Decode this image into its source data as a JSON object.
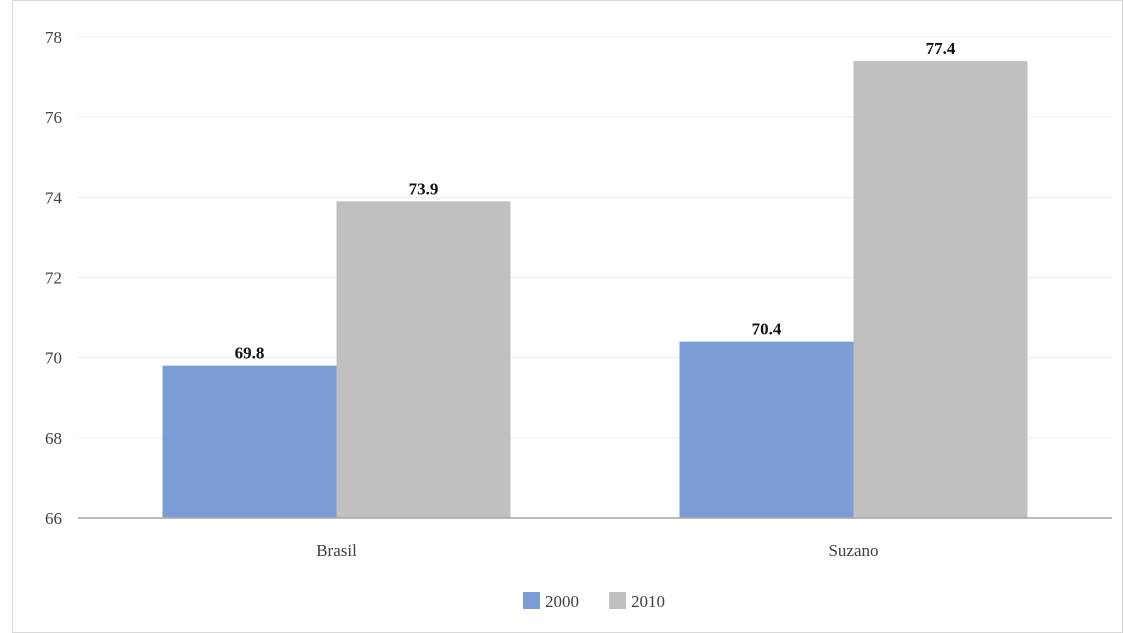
{
  "chart_data": {
    "type": "bar",
    "title": "",
    "xlabel": "",
    "ylabel": "",
    "categories": [
      "Brasil",
      "Suzano"
    ],
    "series": [
      {
        "name": "2000",
        "values": [
          69.8,
          70.4
        ],
        "color": "#7c9cd5"
      },
      {
        "name": "2010",
        "values": [
          73.9,
          77.4
        ],
        "color": "#c0c0c0"
      }
    ],
    "ylim": [
      66,
      78
    ],
    "yticks": [
      66,
      68,
      70,
      72,
      74,
      76,
      78
    ],
    "grid": true,
    "legend_position": "bottom",
    "data_labels": [
      "69.8",
      "73.9",
      "70.4",
      "77.4"
    ]
  }
}
